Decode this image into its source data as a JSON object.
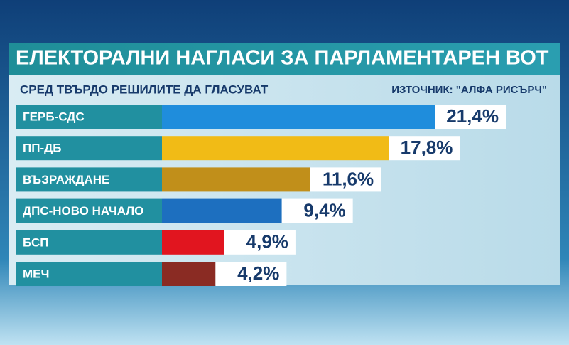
{
  "chart_data": {
    "type": "bar",
    "orientation": "horizontal",
    "title": "ЕЛЕКТОРАЛНИ НАГЛАСИ ЗА ПАРЛАМЕНТАРЕН ВОТ",
    "subtitle": "СРЕД ТВЪРДО РЕШИЛИТЕ ДА ГЛАСУВАТ",
    "source": "ИЗТОЧНИК: \"АЛФА РИСЪРЧ\"",
    "categories": [
      "ГЕРБ-СДС",
      "ПП-ДБ",
      "ВЪЗРАЖДАНЕ",
      "ДПС-НОВО НАЧАЛО",
      "БСП",
      "МЕЧ"
    ],
    "values": [
      21.4,
      17.8,
      11.6,
      9.4,
      4.9,
      4.2
    ],
    "value_labels": [
      "21,4%",
      "17,8%",
      "11,6%",
      "9,4%",
      "4,9%",
      "4,2%"
    ],
    "colors": [
      "#1f8ddc",
      "#f1bb16",
      "#c18f1a",
      "#1d6fbf",
      "#e1151f",
      "#8a2b23"
    ]
  }
}
